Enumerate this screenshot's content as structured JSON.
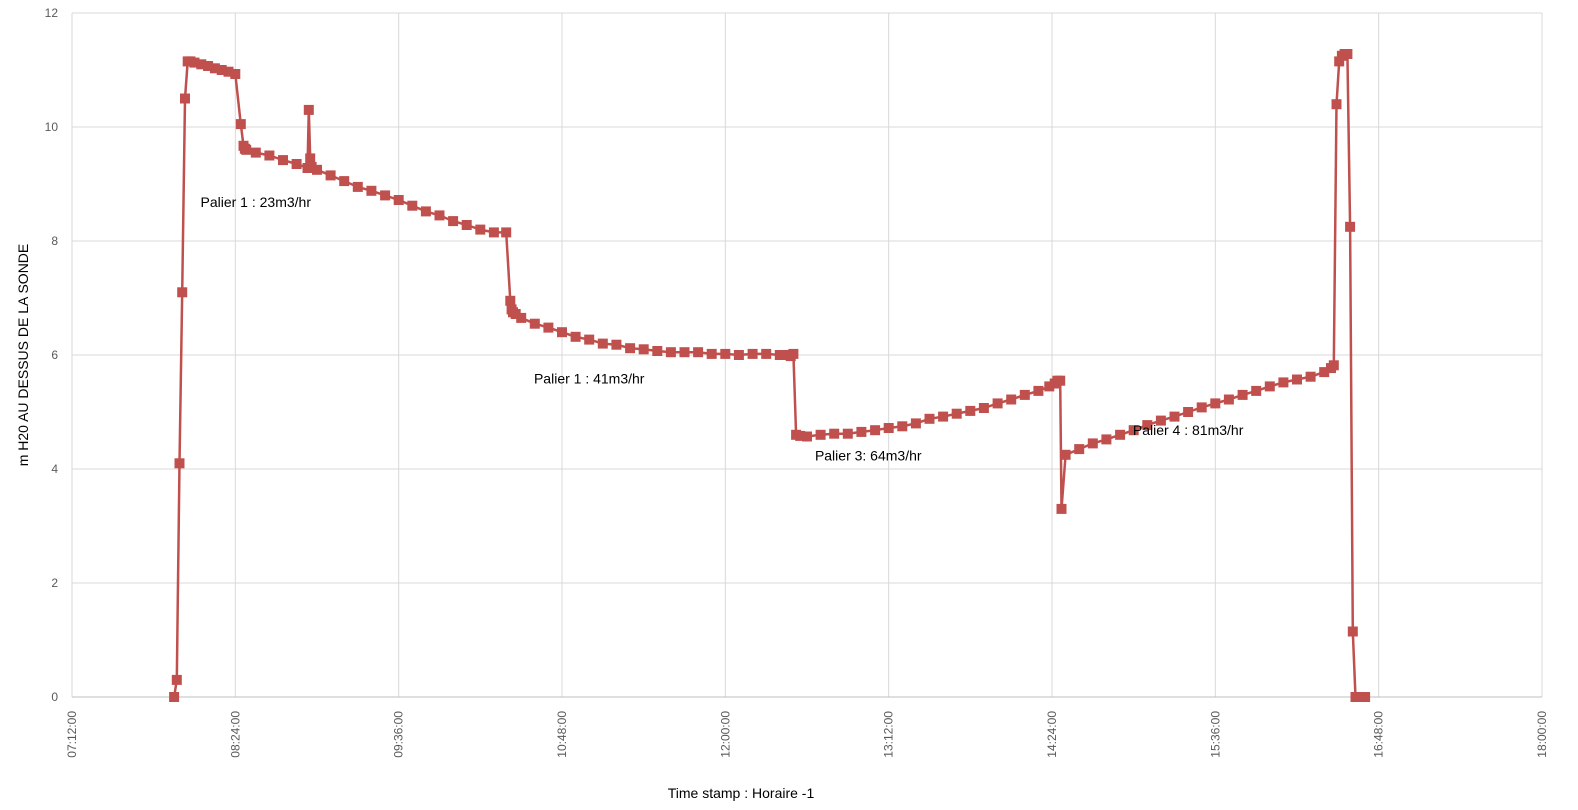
{
  "chart_data": {
    "type": "line",
    "title": "",
    "xlabel": "Time stamp :  Horaire -1",
    "ylabel": "m H20 AU DESSUS DE LA SONDE",
    "x_unit": "hours_of_day",
    "xlim": [
      7.2,
      18.0
    ],
    "ylim": [
      0,
      12
    ],
    "x_ticks": [
      {
        "value": 7.2,
        "label": "07:12:00"
      },
      {
        "value": 8.4,
        "label": "08:24:00"
      },
      {
        "value": 9.6,
        "label": "09:36:00"
      },
      {
        "value": 10.8,
        "label": "10:48:00"
      },
      {
        "value": 12.0,
        "label": "12:00:00"
      },
      {
        "value": 13.2,
        "label": "13:12:00"
      },
      {
        "value": 14.4,
        "label": "14:24:00"
      },
      {
        "value": 15.6,
        "label": "15:36:00"
      },
      {
        "value": 16.8,
        "label": "16:48:00"
      },
      {
        "value": 18.0,
        "label": "18:00:00"
      }
    ],
    "y_ticks": [
      0,
      2,
      4,
      6,
      8,
      10,
      12
    ],
    "grid": true,
    "legend": "none",
    "series": [
      {
        "color": "#c0504d",
        "marker": "square",
        "x": [
          7.95,
          7.97,
          7.99,
          8.01,
          8.03,
          8.05,
          8.07,
          8.1,
          8.15,
          8.2,
          8.25,
          8.3,
          8.35,
          8.4,
          8.44,
          8.46,
          8.47,
          8.48,
          8.55,
          8.65,
          8.75,
          8.85,
          8.93,
          8.94,
          8.95,
          8.96,
          9.0,
          9.1,
          9.2,
          9.3,
          9.4,
          9.5,
          9.6,
          9.7,
          9.8,
          9.9,
          10.0,
          10.1,
          10.2,
          10.3,
          10.39,
          10.42,
          10.43,
          10.44,
          10.46,
          10.5,
          10.6,
          10.7,
          10.8,
          10.9,
          11.0,
          11.1,
          11.2,
          11.3,
          11.4,
          11.5,
          11.6,
          11.7,
          11.8,
          11.9,
          12.0,
          12.1,
          12.2,
          12.3,
          12.4,
          12.45,
          12.48,
          12.5,
          12.52,
          12.55,
          12.6,
          12.7,
          12.8,
          12.9,
          13.0,
          13.1,
          13.2,
          13.3,
          13.4,
          13.5,
          13.6,
          13.7,
          13.8,
          13.9,
          14.0,
          14.1,
          14.2,
          14.3,
          14.38,
          14.42,
          14.44,
          14.46,
          14.47,
          14.5,
          14.6,
          14.7,
          14.8,
          14.9,
          15.0,
          15.1,
          15.2,
          15.3,
          15.4,
          15.5,
          15.6,
          15.7,
          15.8,
          15.9,
          16.0,
          16.1,
          16.2,
          16.3,
          16.4,
          16.45,
          16.47,
          16.49,
          16.51,
          16.53,
          16.55,
          16.57,
          16.59,
          16.61,
          16.63,
          16.65,
          16.67,
          16.7
        ],
        "y": [
          0.0,
          0.3,
          4.1,
          7.1,
          10.5,
          11.15,
          11.15,
          11.13,
          11.1,
          11.07,
          11.03,
          11.0,
          10.97,
          10.93,
          10.05,
          9.67,
          9.62,
          9.6,
          9.55,
          9.5,
          9.42,
          9.35,
          9.28,
          10.3,
          9.45,
          9.3,
          9.25,
          9.15,
          9.05,
          8.95,
          8.88,
          8.8,
          8.72,
          8.62,
          8.52,
          8.45,
          8.35,
          8.28,
          8.2,
          8.15,
          8.15,
          6.95,
          6.8,
          6.75,
          6.72,
          6.65,
          6.55,
          6.48,
          6.4,
          6.32,
          6.27,
          6.2,
          6.18,
          6.12,
          6.1,
          6.07,
          6.05,
          6.05,
          6.05,
          6.02,
          6.02,
          6.0,
          6.02,
          6.02,
          6.0,
          6.0,
          5.98,
          6.02,
          4.6,
          4.58,
          4.57,
          4.6,
          4.62,
          4.62,
          4.65,
          4.68,
          4.72,
          4.75,
          4.8,
          4.88,
          4.92,
          4.97,
          5.02,
          5.07,
          5.15,
          5.22,
          5.3,
          5.37,
          5.45,
          5.5,
          5.55,
          5.55,
          3.3,
          4.25,
          4.35,
          4.45,
          4.52,
          4.6,
          4.68,
          4.77,
          4.85,
          4.92,
          5.0,
          5.08,
          5.15,
          5.22,
          5.3,
          5.37,
          5.45,
          5.52,
          5.57,
          5.62,
          5.7,
          5.77,
          5.82,
          10.4,
          11.15,
          11.25,
          11.28,
          11.28,
          8.25,
          1.15,
          0.0,
          0.0,
          0.0,
          0.0
        ]
      }
    ],
    "annotations": [
      {
        "text": "Palier 1 : 23m3/hr",
        "x": 8.55,
        "y": 8.6
      },
      {
        "text": "Palier 1 : 41m3/hr",
        "x": 11.0,
        "y": 5.5
      },
      {
        "text": "Palier 3: 64m3/hr",
        "x": 13.05,
        "y": 4.15
      },
      {
        "text": "Palier 4 : 81m3/hr",
        "x": 15.4,
        "y": 4.6
      }
    ]
  }
}
